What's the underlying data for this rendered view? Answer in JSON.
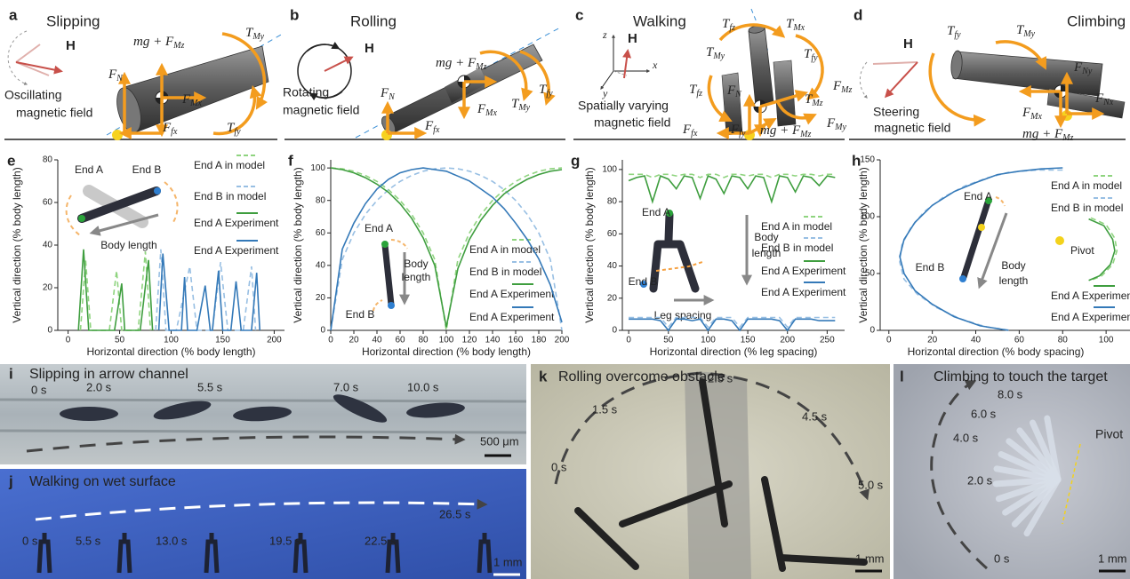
{
  "diagrams": [
    {
      "letter": "a",
      "title": "Slipping",
      "field_vector": "H",
      "field": [
        "Oscillating",
        "magnetic field"
      ],
      "labels": [
        {
          "text": "F",
          "sub": "N"
        },
        {
          "text": "mg + F",
          "sub": "Mz"
        },
        {
          "text": "T",
          "sub": "My"
        },
        {
          "text": "F",
          "sub": "Mx"
        },
        {
          "text": "F",
          "sub": "fx"
        },
        {
          "text": "T",
          "sub": "fy"
        }
      ]
    },
    {
      "letter": "b",
      "title": "Rolling",
      "field_vector": "H",
      "field": [
        "Rotating",
        "magnetic field"
      ],
      "labels": [
        {
          "text": "mg + F",
          "sub": "Mz"
        },
        {
          "text": "F",
          "sub": "N"
        },
        {
          "text": "F",
          "sub": "Mx"
        },
        {
          "text": "T",
          "sub": "My"
        },
        {
          "text": "T",
          "sub": "fy"
        },
        {
          "text": "F",
          "sub": "fx"
        }
      ]
    },
    {
      "letter": "c",
      "title": "Walking",
      "field_vector": "H",
      "field": [
        "Spatially varying",
        "magnetic field"
      ],
      "axes": [
        "z",
        "x",
        "y"
      ],
      "labels": [
        {
          "text": "T",
          "sub": "fz"
        },
        {
          "text": "T",
          "sub": "Mx"
        },
        {
          "text": "T",
          "sub": "My"
        },
        {
          "text": "T",
          "sub": "fy"
        },
        {
          "text": "T",
          "sub": "fz"
        },
        {
          "text": "F",
          "sub": "N"
        },
        {
          "text": "T",
          "sub": "Mz"
        },
        {
          "text": "F",
          "sub": "Mz"
        },
        {
          "text": "F",
          "sub": "fx"
        },
        {
          "text": "F",
          "sub": "fy"
        },
        {
          "text": "mg + F",
          "sub": "Mz"
        },
        {
          "text": "F",
          "sub": "My"
        }
      ]
    },
    {
      "letter": "d",
      "title": "Climbing",
      "field_vector": "H",
      "field": [
        "Steering",
        "magnetic field"
      ],
      "labels": [
        {
          "text": "T",
          "sub": "fy"
        },
        {
          "text": "T",
          "sub": "My"
        },
        {
          "text": "F",
          "sub": "Ny"
        },
        {
          "text": "F",
          "sub": "Nx"
        },
        {
          "text": "F",
          "sub": "Mx"
        },
        {
          "text": "mg + F",
          "sub": "Mz"
        }
      ]
    }
  ],
  "chart_data": [
    {
      "type": "line",
      "letter": "e",
      "y_label": "Vertical direction (% body length)",
      "x_label": "Horizontal direction (% body length)",
      "xlim": [
        -10,
        210
      ],
      "ylim": [
        0,
        80
      ],
      "xticks": [
        0,
        50,
        100,
        150,
        200
      ],
      "yticks": [
        0,
        20,
        40,
        60,
        80
      ],
      "annotations": [
        "End A",
        "End B",
        "Body length"
      ],
      "series": [
        {
          "name": "End A in model",
          "color": "#8fd47f",
          "dashed": true,
          "x": [
            12,
            17,
            22,
            40,
            47,
            52,
            68,
            75,
            80
          ],
          "values": [
            0,
            33,
            0,
            0,
            28,
            0,
            0,
            37,
            0
          ]
        },
        {
          "name": "End B in model",
          "color": "#98bfe3",
          "dashed": true,
          "x": [
            85,
            90,
            95,
            105,
            118,
            125,
            140,
            148,
            155,
            170,
            178,
            182
          ],
          "values": [
            0,
            38,
            0,
            0,
            30,
            0,
            0,
            32,
            0,
            0,
            30,
            0
          ]
        },
        {
          "name": "End A Experiment",
          "color": "#3f9e3f",
          "dashed": false,
          "x": [
            10,
            15,
            20,
            45,
            52,
            55,
            70,
            78,
            82
          ],
          "values": [
            0,
            38,
            0,
            0,
            22,
            0,
            0,
            33,
            0
          ]
        },
        {
          "name": "End A Experiment",
          "color": "#3479b8",
          "dashed": false,
          "x": [
            88,
            92,
            98,
            110,
            113,
            116,
            125,
            133,
            138,
            140,
            146,
            150,
            158,
            163,
            168,
            178,
            183,
            186
          ],
          "values": [
            0,
            36,
            0,
            0,
            25,
            0,
            0,
            21,
            0,
            0,
            28,
            0,
            0,
            23,
            0,
            0,
            27,
            0
          ]
        }
      ]
    },
    {
      "type": "line",
      "letter": "f",
      "y_label": "Vertical direction (% body length)",
      "x_label": "Horizontal direction (% body length)",
      "xlim": [
        0,
        200
      ],
      "ylim": [
        0,
        105
      ],
      "xticks": [
        0,
        20,
        40,
        60,
        80,
        100,
        120,
        140,
        160,
        180,
        200
      ],
      "yticks": [
        0,
        20,
        40,
        60,
        80,
        100
      ],
      "annotations": [
        "End A",
        "Body",
        "length",
        "End B"
      ],
      "series": [
        {
          "name": "End A in model",
          "color": "#8fd47f",
          "dashed": true,
          "x": [
            0,
            10,
            20,
            30,
            40,
            50,
            60,
            70,
            80,
            90,
            100,
            110,
            120,
            130,
            140,
            150,
            160,
            170,
            180,
            190,
            200
          ],
          "values": [
            100,
            99.5,
            98,
            95.4,
            91.7,
            86.6,
            80,
            71.4,
            60,
            43.6,
            0,
            43.6,
            60,
            71.4,
            80,
            86.6,
            91.7,
            95.4,
            98,
            99.5,
            100
          ]
        },
        {
          "name": "End B in model",
          "color": "#98bfe3",
          "dashed": true,
          "x": [
            0,
            10,
            20,
            30,
            40,
            50,
            60,
            70,
            80,
            90,
            100,
            110,
            120,
            130,
            140,
            150,
            160,
            170,
            180,
            190,
            200
          ],
          "values": [
            0,
            43.6,
            60,
            71.4,
            80,
            86.6,
            91.7,
            95.4,
            98,
            99.5,
            100,
            99.5,
            98,
            95.4,
            91.7,
            86.6,
            80,
            71.4,
            60,
            43.6,
            0
          ]
        },
        {
          "name": "End A Experiment",
          "color": "#3f9e3f",
          "dashed": false,
          "x": [
            0,
            10,
            20,
            30,
            40,
            50,
            60,
            70,
            80,
            90,
            100,
            110,
            120,
            130,
            140,
            150,
            160,
            170,
            180,
            190,
            200
          ],
          "values": [
            100,
            99,
            97,
            94,
            90,
            85,
            78,
            69,
            57,
            40,
            2,
            38,
            56,
            68,
            77,
            84,
            89,
            93,
            96,
            98,
            99
          ]
        },
        {
          "name": "End A Experiment",
          "color": "#3479b8",
          "dashed": false,
          "x": [
            0,
            10,
            20,
            30,
            40,
            50,
            60,
            70,
            80,
            90,
            100,
            110,
            120,
            130,
            140,
            150,
            160,
            170,
            180,
            190,
            200
          ],
          "values": [
            0,
            50,
            66,
            78,
            87,
            93,
            97,
            99,
            100,
            99,
            98,
            95,
            92,
            87,
            82,
            75,
            66,
            56,
            44,
            28,
            5
          ]
        }
      ]
    },
    {
      "type": "line",
      "letter": "g",
      "y_label": "Vertical direction (% body length)",
      "x_label": "Horizontal direction (% leg spacing)",
      "xlim": [
        -8,
        272
      ],
      "ylim": [
        0,
        106
      ],
      "xticks": [
        0,
        50,
        100,
        150,
        200,
        250
      ],
      "yticks": [
        0,
        20,
        40,
        60,
        80,
        100
      ],
      "annotations": [
        "End A",
        "Body",
        "length",
        "End B",
        "Leg spacing"
      ],
      "series": [
        {
          "name": "End A in model",
          "color": "#8fd47f",
          "dashed": true,
          "x": [
            0,
            10,
            20,
            30,
            40,
            50,
            60,
            70,
            80,
            90,
            100,
            110,
            120,
            130,
            140,
            150,
            160,
            170,
            180,
            190,
            200,
            210,
            220,
            230,
            240,
            250,
            260
          ],
          "values": [
            97,
            97,
            97,
            95,
            97,
            97,
            96,
            97,
            97,
            95,
            97,
            97,
            95,
            97,
            97,
            96,
            97,
            97,
            95,
            97,
            97,
            96,
            97,
            97,
            96,
            97,
            97
          ]
        },
        {
          "name": "End B in model",
          "color": "#98bfe3",
          "dashed": true,
          "x": [
            0,
            10,
            20,
            30,
            40,
            50,
            60,
            70,
            80,
            90,
            100,
            110,
            120,
            130,
            140,
            150,
            160,
            170,
            180,
            190,
            200,
            210,
            220,
            230,
            240,
            250,
            260
          ],
          "values": [
            8,
            8,
            8,
            8,
            8,
            2,
            8,
            8,
            8,
            8,
            2,
            8,
            8,
            8,
            2,
            8,
            8,
            8,
            8,
            8,
            2,
            8,
            8,
            8,
            8,
            8,
            8
          ]
        },
        {
          "name": "End A Experiment",
          "color": "#3f9e3f",
          "dashed": false,
          "x": [
            0,
            10,
            20,
            30,
            40,
            50,
            60,
            70,
            80,
            90,
            100,
            110,
            120,
            130,
            140,
            150,
            160,
            170,
            180,
            190,
            200,
            210,
            220,
            230,
            240,
            250,
            260
          ],
          "values": [
            93,
            95,
            96,
            80,
            96,
            94,
            88,
            96,
            95,
            82,
            96,
            94,
            85,
            96,
            95,
            88,
            96,
            95,
            80,
            96,
            95,
            86,
            96,
            95,
            90,
            96,
            95
          ]
        },
        {
          "name": "End A Experiment",
          "color": "#3479b8",
          "dashed": false,
          "x": [
            0,
            10,
            20,
            30,
            40,
            50,
            60,
            70,
            80,
            90,
            100,
            110,
            120,
            130,
            140,
            150,
            160,
            170,
            180,
            190,
            200,
            210,
            220,
            230,
            240,
            250,
            260
          ],
          "values": [
            7,
            7,
            7,
            7,
            6,
            0,
            7,
            7,
            6,
            7,
            0,
            7,
            7,
            6,
            0,
            7,
            7,
            7,
            7,
            6,
            0,
            7,
            7,
            7,
            6,
            6,
            6
          ]
        }
      ]
    },
    {
      "type": "line",
      "letter": "h",
      "y_label": "Vertical direction (% body length)",
      "x_label": "Horizontal direction (% body spacing)",
      "xlim": [
        -4,
        111
      ],
      "ylim": [
        0,
        150
      ],
      "xticks": [
        0,
        20,
        40,
        60,
        80,
        100
      ],
      "yticks": [
        0,
        50,
        100,
        150
      ],
      "annotations": [
        "End A",
        "Body",
        "length",
        "End B"
      ],
      "pivot": {
        "label": "Pivot",
        "color": "#f3d21c"
      },
      "series": [
        {
          "name": "End A in model",
          "color": "#8fd47f",
          "dashed": true,
          "x": [
            93,
            100,
            104,
            105,
            103,
            98,
            93
          ],
          "values": [
            99,
            93,
            81,
            70,
            58,
            48,
            44
          ]
        },
        {
          "name": "End B in model",
          "color": "#98bfe3",
          "dashed": true,
          "x": [
            80,
            68,
            55,
            45,
            35,
            25,
            16,
            10,
            6,
            5,
            7,
            13,
            22,
            33,
            45,
            56
          ],
          "values": [
            141,
            141,
            139,
            134,
            127,
            117,
            104,
            90,
            75,
            60,
            45,
            32,
            20,
            10,
            3,
            0
          ]
        },
        {
          "name": "End A Experiment",
          "color": "#3f9e3f",
          "dashed": false,
          "x": [
            92,
            99,
            103,
            104,
            102,
            97,
            92
          ],
          "values": [
            98,
            92,
            80,
            70,
            58,
            48,
            44
          ]
        },
        {
          "name": "End A Experiment",
          "color": "#3479b8",
          "dashed": false,
          "x": [
            80,
            70,
            60,
            50,
            40,
            30,
            20,
            12,
            7,
            5,
            7,
            12,
            20,
            30,
            42,
            55
          ],
          "values": [
            143,
            142,
            140,
            137,
            130,
            122,
            110,
            95,
            80,
            65,
            50,
            35,
            23,
            12,
            4,
            0
          ]
        }
      ]
    }
  ],
  "photos": [
    {
      "letter": "i",
      "title": "Slipping in arrow channel",
      "times": [
        "0 s",
        "2.0 s",
        "5.5 s",
        "7.0 s",
        "10.0 s"
      ],
      "scale": "500 μm"
    },
    {
      "letter": "j",
      "title": "Walking on wet surface",
      "times": [
        "0 s",
        "5.5 s",
        "13.0 s",
        "19.5 s",
        "22.5 s",
        "26.5 s"
      ],
      "scale": "1 mm"
    },
    {
      "letter": "k",
      "title": "Rolling overcome obstacle",
      "times": [
        "0 s",
        "1.5 s",
        "2.5 s",
        "4.5 s",
        "5.0 s"
      ],
      "scale": "1 mm"
    },
    {
      "letter": "l",
      "title": "Climbing to touch the target",
      "times": [
        "8.0 s",
        "6.0 s",
        "4.0 s",
        "2.0 s",
        "0 s"
      ],
      "label": "Pivot",
      "scale": "1 mm"
    }
  ]
}
